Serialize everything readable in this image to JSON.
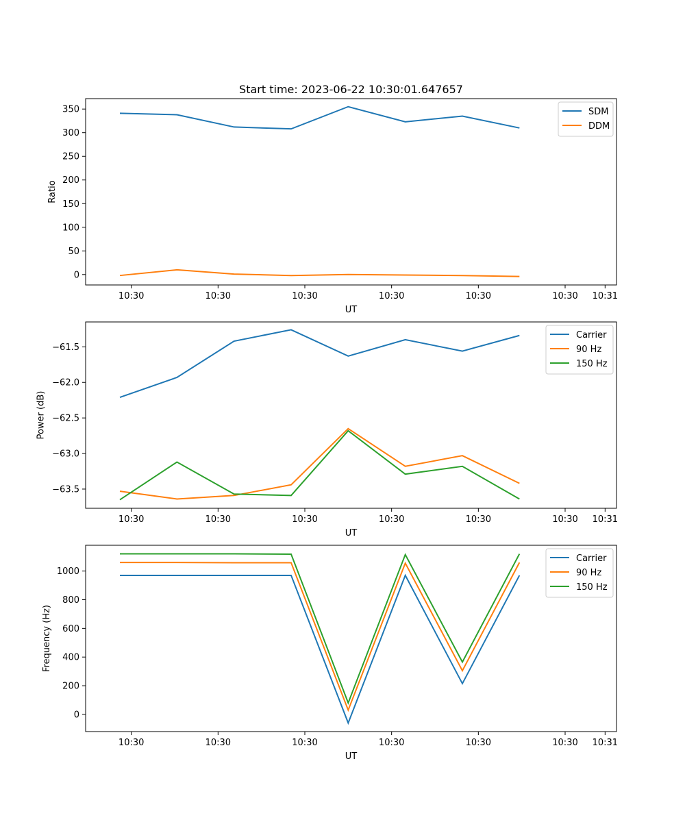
{
  "figure": {
    "title": "Start time: 2023-06-22 10:30:01.647657"
  },
  "chart_data": [
    {
      "type": "line",
      "title": "Start time: 2023-06-22 10:30:01.647657",
      "xlabel": "UT",
      "ylabel": "Ratio",
      "x_tick_labels": [
        "10:30",
        "10:30",
        "10:30",
        "10:30",
        "10:30",
        "10:30",
        "10:31"
      ],
      "x": [
        1,
        2,
        3,
        4,
        5,
        6,
        7,
        8
      ],
      "xlim": [
        0.4,
        9.7
      ],
      "ylim": [
        -22,
        372
      ],
      "y_ticks": [
        0,
        50,
        100,
        150,
        200,
        250,
        300,
        350
      ],
      "y_tick_labels": [
        "0",
        "50",
        "100",
        "150",
        "200",
        "250",
        "300",
        "350"
      ],
      "grid": false,
      "legend_position": "top-right",
      "series": [
        {
          "name": "SDM",
          "color": "#1f77b4",
          "values": [
            341,
            338,
            312,
            308,
            355,
            323,
            335,
            310
          ]
        },
        {
          "name": "DDM",
          "color": "#ff7f0e",
          "values": [
            -2,
            10,
            1,
            -2,
            0,
            -1,
            -2,
            -4
          ]
        }
      ]
    },
    {
      "type": "line",
      "title": "",
      "xlabel": "UT",
      "ylabel": "Power (dB)",
      "x_tick_labels": [
        "10:30",
        "10:30",
        "10:30",
        "10:30",
        "10:30",
        "10:30",
        "10:31"
      ],
      "x": [
        1,
        2,
        3,
        4,
        5,
        6,
        7,
        8
      ],
      "xlim": [
        0.4,
        9.7
      ],
      "ylim": [
        -63.77,
        -61.15
      ],
      "y_ticks": [
        -63.5,
        -63.0,
        -62.5,
        -62.0,
        -61.5
      ],
      "y_tick_labels": [
        "−63.5",
        "−63.0",
        "−62.5",
        "−62.0",
        "−61.5"
      ],
      "grid": false,
      "legend_position": "top-right",
      "series": [
        {
          "name": "Carrier",
          "color": "#1f77b4",
          "values": [
            -62.21,
            -61.93,
            -61.42,
            -61.26,
            -61.63,
            -61.4,
            -61.56,
            -61.34
          ]
        },
        {
          "name": "90 Hz",
          "color": "#ff7f0e",
          "values": [
            -63.53,
            -63.64,
            -63.59,
            -63.44,
            -62.65,
            -63.18,
            -63.03,
            -63.42
          ]
        },
        {
          "name": "150 Hz",
          "color": "#2ca02c",
          "values": [
            -63.65,
            -63.12,
            -63.57,
            -63.59,
            -62.68,
            -63.29,
            -63.18,
            -63.64
          ]
        }
      ]
    },
    {
      "type": "line",
      "title": "",
      "xlabel": "UT",
      "ylabel": "Frequency (Hz)",
      "x_tick_labels": [
        "10:30",
        "10:30",
        "10:30",
        "10:30",
        "10:30",
        "10:30",
        "10:31"
      ],
      "x": [
        1,
        2,
        3,
        4,
        5,
        6,
        7,
        8
      ],
      "xlim": [
        0.4,
        9.7
      ],
      "ylim": [
        -120,
        1180
      ],
      "y_ticks": [
        0,
        200,
        400,
        600,
        800,
        1000
      ],
      "y_tick_labels": [
        "0",
        "200",
        "400",
        "600",
        "800",
        "1000"
      ],
      "grid": false,
      "legend_position": "top-right",
      "series": [
        {
          "name": "Carrier",
          "color": "#1f77b4",
          "values": [
            970,
            970,
            970,
            970,
            -60,
            970,
            215,
            970
          ]
        },
        {
          "name": "90 Hz",
          "color": "#ff7f0e",
          "values": [
            1060,
            1060,
            1058,
            1058,
            30,
            1055,
            305,
            1060
          ]
        },
        {
          "name": "150 Hz",
          "color": "#2ca02c",
          "values": [
            1120,
            1120,
            1120,
            1118,
            80,
            1115,
            365,
            1120
          ]
        }
      ]
    }
  ]
}
